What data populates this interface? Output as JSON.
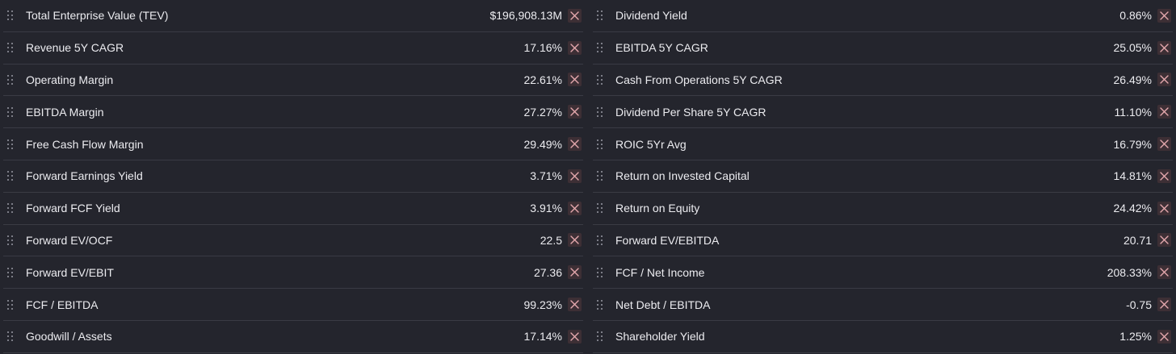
{
  "left_metrics": [
    {
      "label": "Total Enterprise Value (TEV)",
      "value": "$196,908.13M"
    },
    {
      "label": "Revenue 5Y CAGR",
      "value": "17.16%"
    },
    {
      "label": "Operating Margin",
      "value": "22.61%"
    },
    {
      "label": "EBITDA Margin",
      "value": "27.27%"
    },
    {
      "label": "Free Cash Flow Margin",
      "value": "29.49%"
    },
    {
      "label": "Forward Earnings Yield",
      "value": "3.71%"
    },
    {
      "label": "Forward FCF Yield",
      "value": "3.91%"
    },
    {
      "label": "Forward EV/OCF",
      "value": "22.5"
    },
    {
      "label": "Forward EV/EBIT",
      "value": "27.36"
    },
    {
      "label": "FCF / EBITDA",
      "value": "99.23%"
    },
    {
      "label": "Goodwill / Assets",
      "value": "17.14%"
    }
  ],
  "right_metrics": [
    {
      "label": "Dividend Yield",
      "value": "0.86%"
    },
    {
      "label": "EBITDA 5Y CAGR",
      "value": "25.05%"
    },
    {
      "label": "Cash From Operations 5Y CAGR",
      "value": "26.49%"
    },
    {
      "label": "Dividend Per Share 5Y CAGR",
      "value": "11.10%"
    },
    {
      "label": "ROIC 5Yr Avg",
      "value": "16.79%"
    },
    {
      "label": "Return on Invested Capital",
      "value": "14.81%"
    },
    {
      "label": "Return on Equity",
      "value": "24.42%"
    },
    {
      "label": "Forward EV/EBITDA",
      "value": "20.71"
    },
    {
      "label": "FCF / Net Income",
      "value": "208.33%"
    },
    {
      "label": "Net Debt / EBITDA",
      "value": "-0.75"
    },
    {
      "label": "Shareholder Yield",
      "value": "1.25%"
    }
  ],
  "icons": {
    "drag": "drag-handle-icon",
    "remove": "close-icon"
  },
  "colors": {
    "background": "#24252d",
    "divider": "#3a3b44",
    "remove_bg": "#3d2f35",
    "remove_x": "#e4a8ad"
  }
}
